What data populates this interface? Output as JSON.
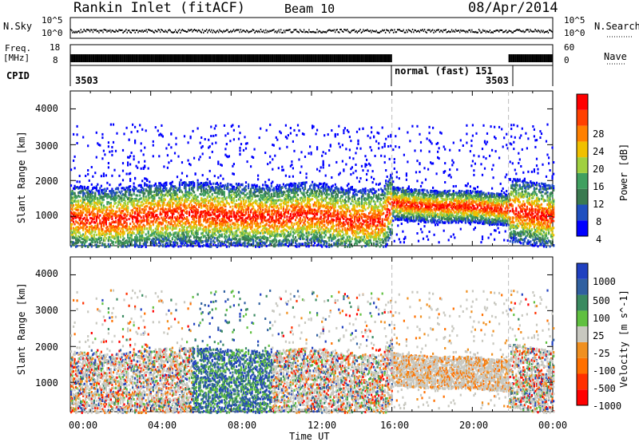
{
  "header": {
    "station": "Rankin Inlet (fitACF)",
    "beam": "Beam 10",
    "date": "08/Apr/2014"
  },
  "strips": {
    "nsky_label": "N.Sky",
    "nsky_ticks": [
      "10^5",
      "10^0"
    ],
    "nsearch_label": "N.Search",
    "nsearch_ticks": [
      "10^5",
      "10^0"
    ],
    "freq_label_1": "Freq.",
    "freq_label_2": "[MHz]",
    "freq_ticks": [
      "18",
      "8"
    ],
    "nave_label": "Nave",
    "nave_ticks": [
      "60",
      "0"
    ],
    "cpid_label": "CPID",
    "cpid_segments": [
      {
        "start_hour": 0,
        "label": "3503"
      },
      {
        "start_hour": 16,
        "label": "normal (fast) 151"
      },
      {
        "start_hour": 21.8,
        "label": "3503"
      }
    ]
  },
  "colors": {
    "power_scale": [
      "#0000ff",
      "#2050c0",
      "#3a7a50",
      "#40a060",
      "#a0d040",
      "#f0c000",
      "#ff8000",
      "#ff4000",
      "#ff0000"
    ],
    "velocity_scale": [
      "#2040c0",
      "#3060a0",
      "#3a8a60",
      "#60c040",
      "#c8c8c0",
      "#f09020",
      "#ff7000",
      "#ff3000",
      "#ff0000"
    ]
  },
  "chart_data": [
    {
      "type": "heatmap",
      "name": "power",
      "title": "",
      "xlabel": "",
      "ylabel": "Slant Range [km]",
      "xlim": [
        0,
        24
      ],
      "ylim": [
        180,
        4500
      ],
      "y_ticks": [
        1000,
        2000,
        3000,
        4000
      ],
      "x_tick_labels": [
        "00:00",
        "04:00",
        "08:00",
        "12:00",
        "16:00",
        "20:00",
        "00:00"
      ],
      "colorbar": {
        "label": "Power [dB]",
        "ticks": [
          "4",
          "8",
          "12",
          "16",
          "20",
          "24",
          "28"
        ]
      },
      "band_center_km": [
        [
          0,
          1000
        ],
        [
          2,
          900
        ],
        [
          4,
          1050
        ],
        [
          6,
          1100
        ],
        [
          8,
          1050
        ],
        [
          10,
          1000
        ],
        [
          12,
          1100
        ],
        [
          14,
          900
        ],
        [
          15.5,
          900
        ],
        [
          16,
          1400
        ],
        [
          18,
          1300
        ],
        [
          20,
          1300
        ],
        [
          22,
          1200
        ],
        [
          24,
          1000
        ]
      ]
    },
    {
      "type": "heatmap",
      "name": "velocity",
      "title": "",
      "xlabel": "Time UT",
      "ylabel": "Slant Range [km]",
      "xlim": [
        0,
        24
      ],
      "ylim": [
        180,
        4500
      ],
      "y_ticks": [
        1000,
        2000,
        3000,
        4000
      ],
      "x_tick_labels": [
        "00:00",
        "04:00",
        "08:00",
        "12:00",
        "16:00",
        "20:00",
        "00:00"
      ],
      "colorbar": {
        "label": "Velocity [m s^-1]",
        "ticks": [
          "1000",
          "500",
          "100",
          "25",
          "-25",
          "-100",
          "-500",
          "-1000"
        ]
      }
    }
  ]
}
